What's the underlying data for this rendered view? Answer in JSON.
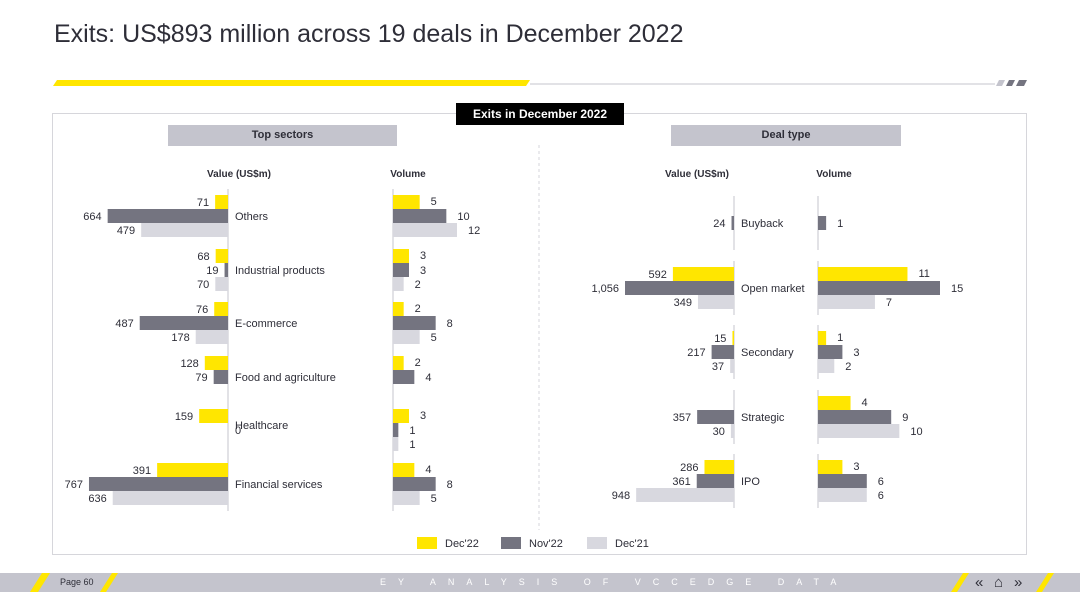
{
  "page_title": "Exits: US$893 million across 19 deals in December 2022",
  "badge": "Exits in December 2022",
  "colors": {
    "dec22": "#ffe600",
    "nov22": "#747480",
    "dec21": "#d8d8df",
    "text": "#2e2e38",
    "axis": "#c4c4cd"
  },
  "legend": [
    {
      "key": "dec22",
      "label": "Dec'22"
    },
    {
      "key": "nov22",
      "label": "Nov'22"
    },
    {
      "key": "dec21",
      "label": "Dec'21"
    }
  ],
  "footer": {
    "page": "Page 60",
    "text": "EY ANALYSIS OF VCCEDGE DATA",
    "nav_prev": "«",
    "nav_home": "⌂",
    "nav_next": "»"
  },
  "chart_data": [
    {
      "type": "bar",
      "title": "Top sectors",
      "value_label": "Value (US$m)",
      "volume_label": "Volume",
      "series_names": [
        "Dec'22",
        "Nov'22",
        "Dec'21"
      ],
      "categories": [
        {
          "name": "Others",
          "value": [
            71,
            664,
            479
          ],
          "volume": [
            5,
            10,
            12
          ]
        },
        {
          "name": "Industrial products",
          "value": [
            68,
            19,
            70
          ],
          "volume": [
            3,
            3,
            2
          ]
        },
        {
          "name": "E-commerce",
          "value": [
            76,
            487,
            178
          ],
          "volume": [
            2,
            8,
            5
          ]
        },
        {
          "name": "Food and agriculture",
          "value": [
            128,
            79,
            null
          ],
          "volume": [
            2,
            4,
            null
          ]
        },
        {
          "name": "Healthcare",
          "value": [
            159,
            0,
            null
          ],
          "volume": [
            3,
            1,
            1
          ]
        },
        {
          "name": "Financial services",
          "value": [
            391,
            767,
            636
          ],
          "volume": [
            4,
            8,
            5
          ]
        }
      ],
      "value_max": 800,
      "volume_max": 15
    },
    {
      "type": "bar",
      "title": "Deal type",
      "value_label": "Value (US$m)",
      "volume_label": "Volume",
      "series_names": [
        "Dec'22",
        "Nov'22",
        "Dec'21"
      ],
      "categories": [
        {
          "name": "Buyback",
          "value": [
            null,
            24,
            null
          ],
          "volume": [
            null,
            1,
            null
          ]
        },
        {
          "name": "Open market",
          "value": [
            592,
            1056,
            349
          ],
          "volume": [
            11,
            15,
            7
          ]
        },
        {
          "name": "Secondary",
          "value": [
            15,
            217,
            37
          ],
          "volume": [
            1,
            3,
            2
          ]
        },
        {
          "name": "Strategic",
          "value": [
            null,
            357,
            30
          ],
          "volume": [
            4,
            9,
            10
          ]
        },
        {
          "name": "IPO",
          "value": [
            286,
            361,
            948
          ],
          "volume": [
            3,
            6,
            6
          ]
        }
      ],
      "value_max": 1100,
      "volume_max": 15
    }
  ]
}
